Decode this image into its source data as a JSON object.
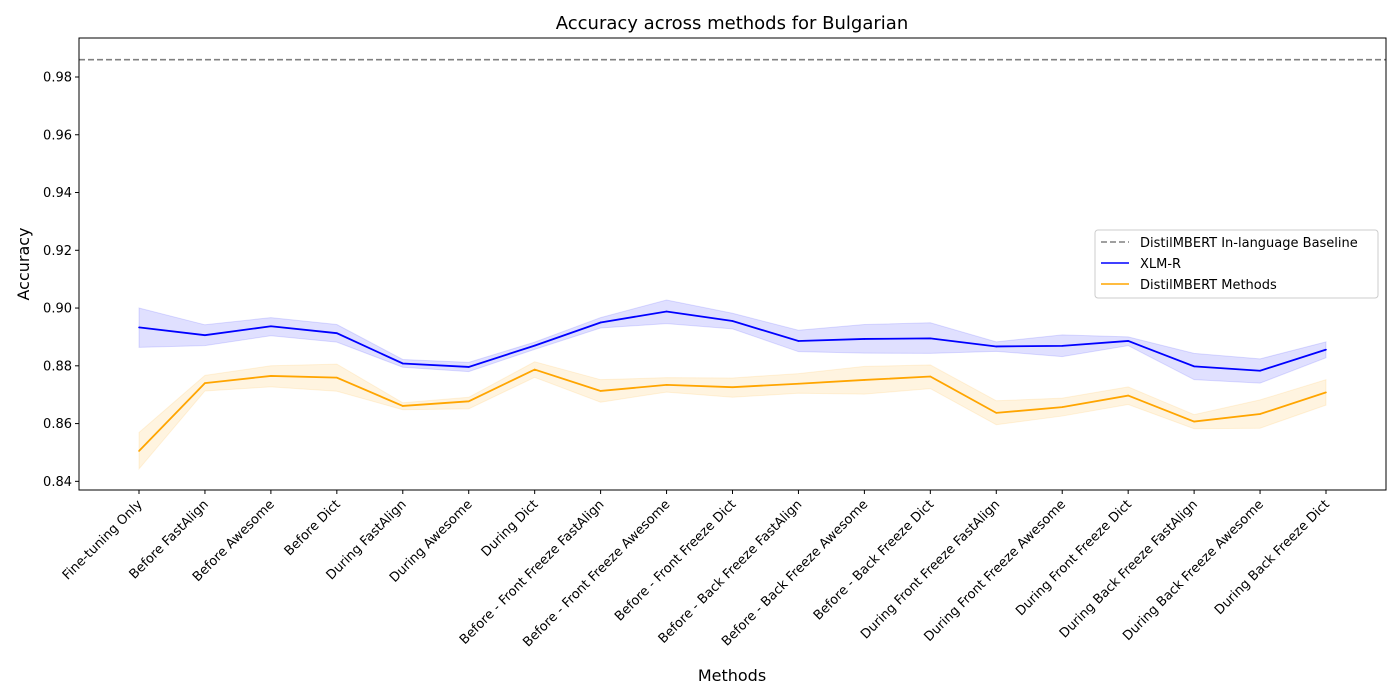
{
  "chart_data": {
    "type": "line",
    "title": "Accuracy across methods for Bulgarian",
    "xlabel": "Methods",
    "ylabel": "Accuracy",
    "ylim": [
      0.837,
      0.9935
    ],
    "yticks": [
      "0.84",
      "0.86",
      "0.88",
      "0.90",
      "0.92",
      "0.94",
      "0.96",
      "0.98"
    ],
    "categories": [
      "Fine-tuning Only",
      "Before FastAlign",
      "Before Awesome",
      "Before Dict",
      "During FastAlign",
      "During Awesome",
      "During Dict",
      "Before - Front Freeze FastAlign",
      "Before - Front Freeze Awesome",
      "Before - Front Freeze Dict",
      "Before - Back Freeze FastAlign",
      "Before - Back Freeze Awesome",
      "Before - Back Freeze Dict",
      "During Front Freeze FastAlign",
      "During Front Freeze Awesome",
      "During Front Freeze Dict",
      "During Back Freeze FastAlign",
      "During Back Freeze Awesome",
      "During Back Freeze Dict"
    ],
    "baseline": {
      "name": "DistilMBERT In-language Baseline",
      "value": 0.986,
      "color": "#808080"
    },
    "series": [
      {
        "name": "XLM-R",
        "color": "#0000ff",
        "values": [
          0.8933,
          0.8906,
          0.8937,
          0.8913,
          0.8808,
          0.8796,
          0.887,
          0.895,
          0.8988,
          0.8955,
          0.8886,
          0.8893,
          0.8895,
          0.8867,
          0.8869,
          0.8886,
          0.8798,
          0.8783,
          0.8856
        ],
        "upper": [
          0.9,
          0.8942,
          0.8967,
          0.8943,
          0.8822,
          0.8812,
          0.8882,
          0.8967,
          0.9028,
          0.8982,
          0.8923,
          0.8943,
          0.8949,
          0.8883,
          0.8907,
          0.89,
          0.8843,
          0.8824,
          0.8883
        ],
        "lower": [
          0.8864,
          0.887,
          0.8904,
          0.8882,
          0.8795,
          0.878,
          0.8857,
          0.8931,
          0.8946,
          0.8928,
          0.8849,
          0.8844,
          0.8843,
          0.885,
          0.8832,
          0.887,
          0.8752,
          0.874,
          0.8828
        ]
      },
      {
        "name": "DistilMBERT Methods",
        "color": "#ffa500",
        "values": [
          0.8505,
          0.874,
          0.8765,
          0.8759,
          0.8661,
          0.8677,
          0.8787,
          0.8713,
          0.8734,
          0.8726,
          0.8738,
          0.8751,
          0.8763,
          0.8637,
          0.8657,
          0.8697,
          0.8607,
          0.8633,
          0.8708
        ],
        "upper": [
          0.8569,
          0.8767,
          0.88,
          0.8806,
          0.8672,
          0.8691,
          0.8814,
          0.8752,
          0.8759,
          0.8758,
          0.8773,
          0.8798,
          0.8803,
          0.8679,
          0.8688,
          0.8727,
          0.8631,
          0.8682,
          0.8752
        ],
        "lower": [
          0.8443,
          0.8713,
          0.8727,
          0.8712,
          0.8648,
          0.8651,
          0.876,
          0.8674,
          0.8709,
          0.8691,
          0.8705,
          0.8702,
          0.8721,
          0.8596,
          0.8626,
          0.8666,
          0.8582,
          0.8584,
          0.8664
        ]
      }
    ],
    "legend": {
      "position": "center-right",
      "entries": [
        "DistilMBERT In-language Baseline",
        "XLM-R",
        "DistilMBERT Methods"
      ]
    },
    "grid": false
  }
}
